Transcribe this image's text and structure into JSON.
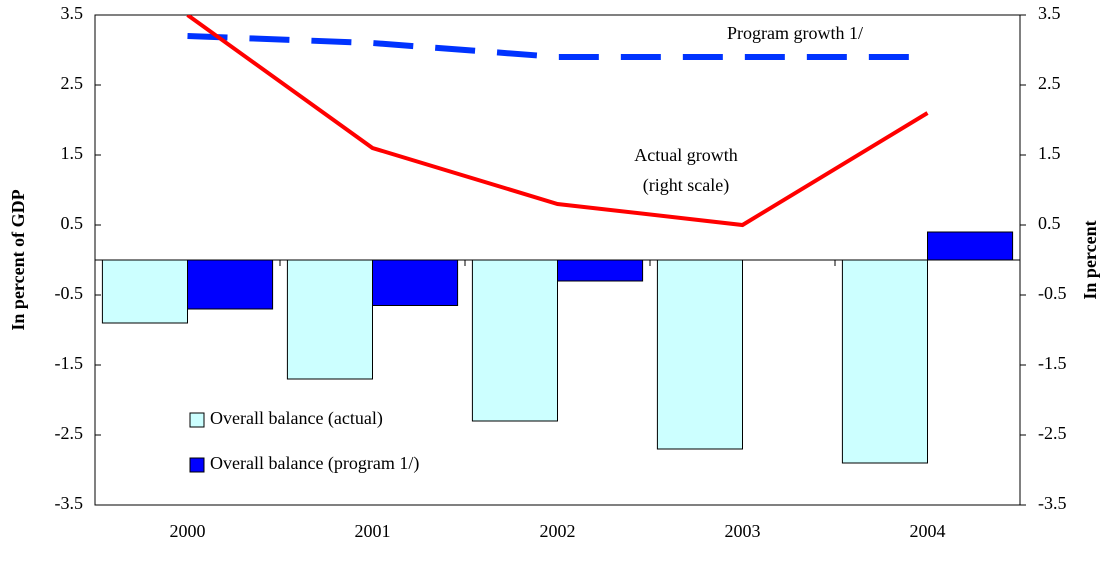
{
  "chart_data": {
    "type": "bar",
    "categories": [
      "2000",
      "2001",
      "2002",
      "2003",
      "2004"
    ],
    "y_label": "In percent of GDP",
    "y2_label": "In percent",
    "annotation": "(right scale)",
    "series": [
      {
        "name": "Overall balance (actual)",
        "type": "bar",
        "color": "#ccffff",
        "values": [
          -0.9,
          -1.7,
          -2.3,
          -2.7,
          -2.9
        ]
      },
      {
        "name": "Overall balance (program 1/)",
        "type": "bar",
        "color": "#0000ff",
        "values": [
          -0.7,
          -0.65,
          -0.3,
          0,
          0.4
        ]
      },
      {
        "name": "Program growth 1/",
        "type": "line",
        "axis": "y2",
        "dashed": true,
        "color": "#0033ff",
        "values": [
          3.2,
          3.1,
          2.9,
          2.9,
          2.9
        ]
      },
      {
        "name": "Actual growth",
        "type": "line",
        "axis": "y2",
        "dashed": false,
        "color": "#ff0000",
        "values": [
          3.5,
          1.6,
          0.8,
          0.5,
          2.1
        ]
      }
    ],
    "ylim": [
      -3.5,
      3.5
    ],
    "yticks": [
      -3.5,
      -2.5,
      -1.5,
      -0.5,
      0.5,
      1.5,
      2.5,
      3.5
    ],
    "y2lim": [
      -3.5,
      3.5
    ],
    "y2ticks": [
      -3.5,
      -2.5,
      -1.5,
      -0.5,
      0.5,
      1.5,
      2.5,
      3.5
    ]
  }
}
